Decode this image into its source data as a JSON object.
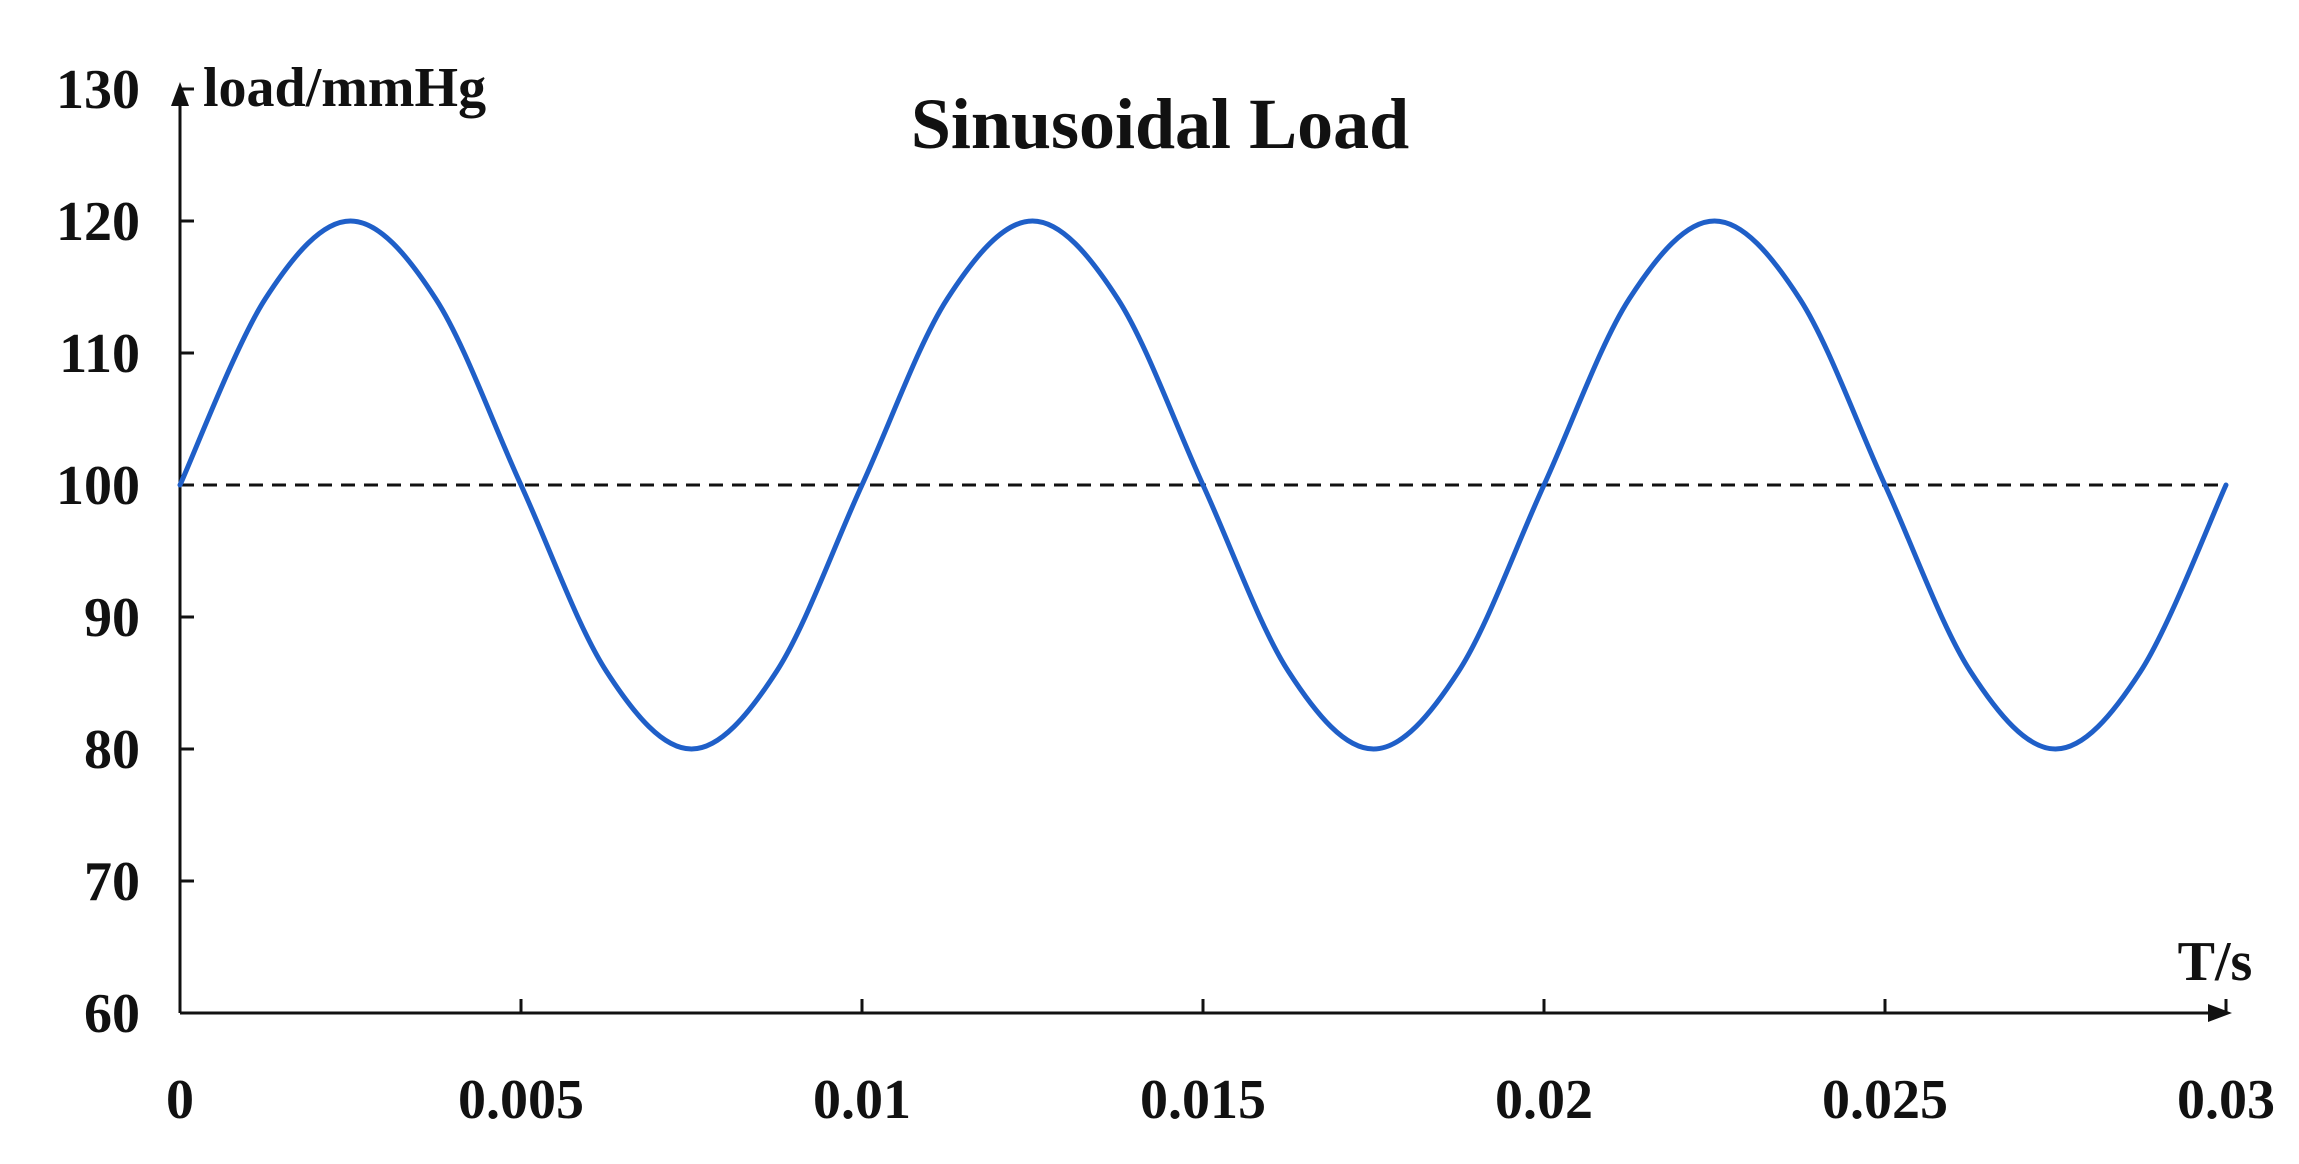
{
  "chart_data": {
    "type": "line",
    "title": "Sinusoidal Load",
    "xlabel": "T/s",
    "ylabel": "load/mmHg",
    "xlim": [
      0,
      0.03
    ],
    "ylim": [
      60,
      130
    ],
    "x_ticks": [
      "0",
      "0.005",
      "0.01",
      "0.015",
      "0.02",
      "0.025",
      "0.03"
    ],
    "y_ticks": [
      "60",
      "70",
      "80",
      "90",
      "100",
      "110",
      "120",
      "130"
    ],
    "grid": false,
    "legend": "none",
    "series": [
      {
        "color": "#1f5fc8",
        "x": [
          0,
          0.00125,
          0.0025,
          0.00375,
          0.005,
          0.00625,
          0.0075,
          0.00875,
          0.01,
          0.01125,
          0.0125,
          0.01375,
          0.015,
          0.01625,
          0.0175,
          0.01875,
          0.02,
          0.02125,
          0.0225,
          0.02375,
          0.025,
          0.02625,
          0.0275,
          0.02875,
          0.03
        ],
        "y": [
          100,
          114.1,
          120,
          114.1,
          100,
          85.9,
          80,
          85.9,
          100,
          114.1,
          120,
          114.1,
          100,
          85.9,
          80,
          85.9,
          100,
          114.1,
          120,
          114.1,
          100,
          85.9,
          80,
          85.9,
          100
        ]
      }
    ],
    "reference_line": {
      "y": 100,
      "style": "dashed",
      "color": "#111111"
    }
  }
}
